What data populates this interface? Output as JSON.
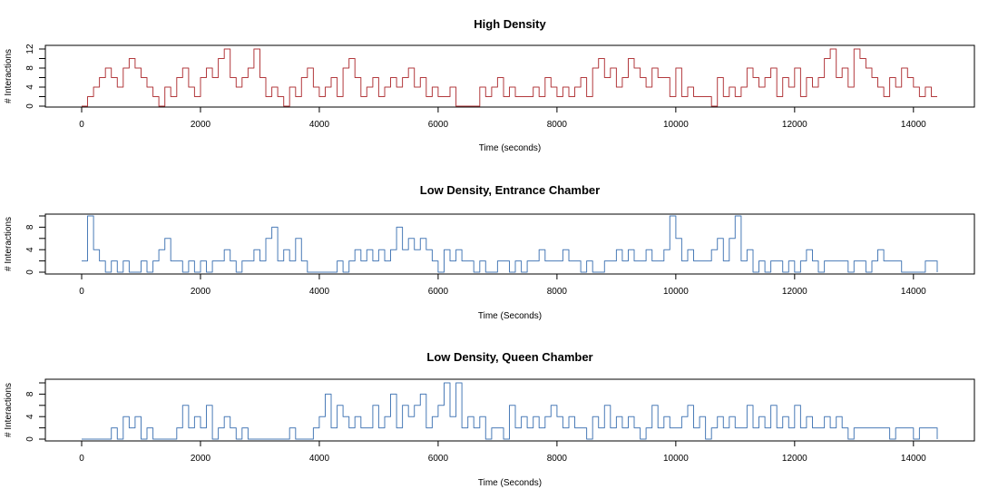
{
  "chart_data": [
    {
      "type": "line",
      "title": "High Density",
      "xlabel": "Time (seconds)",
      "ylabel": "# Interactions",
      "xlim": [
        0,
        14400
      ],
      "ylim": [
        0,
        12
      ],
      "x_ticks": [
        0,
        2000,
        4000,
        6000,
        8000,
        10000,
        12000,
        14000
      ],
      "y_ticks": [
        0,
        4,
        8,
        12
      ],
      "y_tick_labels": [
        "0",
        "4",
        "8",
        "12"
      ],
      "y_minor_ticks": [
        2,
        6,
        10
      ],
      "color": "#b2393d",
      "series": [
        {
          "x": [
            0,
            100,
            200,
            300,
            400,
            500,
            600,
            700,
            800,
            900,
            1000,
            1100,
            1200,
            1300,
            1400,
            1500,
            1600,
            1700,
            1800,
            1900,
            2000,
            2100,
            2200,
            2300,
            2400,
            2500,
            2600,
            2700,
            2800,
            2900,
            3000,
            3100,
            3200,
            3300,
            3400,
            3500,
            3600,
            3700,
            3800,
            3900,
            4000,
            4100,
            4200,
            4300,
            4400,
            4500,
            4600,
            4700,
            4800,
            4900,
            5000,
            5100,
            5200,
            5300,
            5400,
            5500,
            5600,
            5700,
            5800,
            5900,
            6000,
            6100,
            6200,
            6300,
            6400,
            6500,
            6600,
            6700,
            6800,
            6900,
            7000,
            7100,
            7200,
            7300,
            7400,
            7500,
            7600,
            7700,
            7800,
            7900,
            8000,
            8100,
            8200,
            8300,
            8400,
            8500,
            8600,
            8700,
            8800,
            8900,
            9000,
            9100,
            9200,
            9300,
            9400,
            9500,
            9600,
            9700,
            9800,
            9900,
            10000,
            10100,
            10200,
            10300,
            10400,
            10500,
            10600,
            10700,
            10800,
            10900,
            11000,
            11100,
            11200,
            11300,
            11400,
            11500,
            11600,
            11700,
            11800,
            11900,
            12000,
            12100,
            12200,
            12300,
            12400,
            12500,
            12600,
            12700,
            12800,
            12900,
            13000,
            13100,
            13200,
            13300,
            13400,
            13500,
            13600,
            13700,
            13800,
            13900,
            14000,
            14100,
            14200,
            14300,
            14400
          ],
          "values": [
            0,
            2,
            4,
            6,
            8,
            6,
            4,
            8,
            10,
            8,
            6,
            4,
            2,
            0,
            4,
            2,
            6,
            8,
            4,
            2,
            6,
            8,
            6,
            10,
            12,
            6,
            4,
            6,
            8,
            12,
            6,
            2,
            4,
            2,
            0,
            4,
            2,
            6,
            8,
            4,
            2,
            4,
            6,
            2,
            8,
            10,
            6,
            2,
            4,
            6,
            2,
            4,
            6,
            4,
            6,
            8,
            4,
            6,
            2,
            4,
            2,
            2,
            4,
            0,
            0,
            0,
            0,
            4,
            2,
            4,
            6,
            2,
            4,
            2,
            2,
            2,
            4,
            2,
            6,
            4,
            2,
            4,
            2,
            4,
            6,
            2,
            8,
            10,
            6,
            8,
            4,
            6,
            10,
            8,
            6,
            4,
            8,
            6,
            6,
            2,
            8,
            2,
            4,
            2,
            2,
            2,
            0,
            6,
            2,
            4,
            2,
            4,
            8,
            6,
            4,
            6,
            8,
            2,
            6,
            4,
            8,
            2,
            6,
            4,
            6,
            10,
            12,
            6,
            8,
            4,
            12,
            10,
            8,
            6,
            4,
            2,
            6,
            4,
            8,
            6,
            4,
            2,
            4,
            2,
            2
          ]
        }
      ]
    },
    {
      "type": "line",
      "title": "Low Density, Entrance Chamber",
      "xlabel": "Time (Seconds)",
      "ylabel": "# Interactions",
      "xlim": [
        0,
        14400
      ],
      "ylim": [
        0,
        10
      ],
      "x_ticks": [
        0,
        2000,
        4000,
        6000,
        8000,
        10000,
        12000,
        14000
      ],
      "y_ticks": [
        0,
        4,
        8
      ],
      "y_tick_labels": [
        "0",
        "4",
        "8"
      ],
      "y_minor_ticks": [
        2,
        6,
        10
      ],
      "color": "#4a7bb7",
      "series": [
        {
          "x": [
            0,
            100,
            200,
            300,
            400,
            500,
            600,
            700,
            800,
            900,
            1000,
            1100,
            1200,
            1300,
            1400,
            1500,
            1600,
            1700,
            1800,
            1900,
            2000,
            2100,
            2200,
            2300,
            2400,
            2500,
            2600,
            2700,
            2800,
            2900,
            3000,
            3100,
            3200,
            3300,
            3400,
            3500,
            3600,
            3700,
            3800,
            3900,
            4000,
            4100,
            4200,
            4300,
            4400,
            4500,
            4600,
            4700,
            4800,
            4900,
            5000,
            5100,
            5200,
            5300,
            5400,
            5500,
            5600,
            5700,
            5800,
            5900,
            6000,
            6100,
            6200,
            6300,
            6400,
            6500,
            6600,
            6700,
            6800,
            6900,
            7000,
            7100,
            7200,
            7300,
            7400,
            7500,
            7600,
            7700,
            7800,
            7900,
            8000,
            8100,
            8200,
            8300,
            8400,
            8500,
            8600,
            8700,
            8800,
            8900,
            9000,
            9100,
            9200,
            9300,
            9400,
            9500,
            9600,
            9700,
            9800,
            9900,
            10000,
            10100,
            10200,
            10300,
            10400,
            10500,
            10600,
            10700,
            10800,
            10900,
            11000,
            11100,
            11200,
            11300,
            11400,
            11500,
            11600,
            11700,
            11800,
            11900,
            12000,
            12100,
            12200,
            12300,
            12400,
            12500,
            12600,
            12700,
            12800,
            12900,
            13000,
            13100,
            13200,
            13300,
            13400,
            13500,
            13600,
            13700,
            13800,
            13900,
            14000,
            14100,
            14200,
            14300,
            14400
          ],
          "values": [
            2,
            10,
            4,
            2,
            0,
            2,
            0,
            2,
            0,
            0,
            2,
            0,
            2,
            4,
            6,
            2,
            2,
            0,
            2,
            0,
            2,
            0,
            2,
            2,
            4,
            2,
            0,
            2,
            2,
            4,
            2,
            6,
            8,
            2,
            4,
            2,
            6,
            2,
            0,
            0,
            0,
            0,
            0,
            2,
            0,
            2,
            4,
            2,
            4,
            2,
            4,
            2,
            4,
            8,
            4,
            6,
            4,
            6,
            4,
            2,
            0,
            4,
            2,
            4,
            2,
            2,
            0,
            2,
            0,
            0,
            2,
            2,
            0,
            2,
            0,
            2,
            2,
            4,
            2,
            2,
            2,
            4,
            2,
            2,
            0,
            2,
            0,
            0,
            2,
            2,
            4,
            2,
            4,
            2,
            2,
            4,
            2,
            2,
            4,
            10,
            6,
            2,
            4,
            2,
            2,
            2,
            4,
            6,
            2,
            6,
            10,
            2,
            4,
            0,
            2,
            0,
            2,
            2,
            0,
            2,
            0,
            2,
            4,
            2,
            0,
            2,
            2,
            2,
            2,
            0,
            2,
            2,
            0,
            2,
            4,
            2,
            2,
            2,
            0,
            0,
            0,
            0,
            2,
            2,
            0
          ]
        }
      ]
    },
    {
      "type": "line",
      "title": "Low Density, Queen Chamber",
      "xlabel": "Time (Seconds)",
      "ylabel": "# Interactions",
      "xlim": [
        0,
        14400
      ],
      "ylim": [
        0,
        10
      ],
      "x_ticks": [
        0,
        2000,
        4000,
        6000,
        8000,
        10000,
        12000,
        14000
      ],
      "y_ticks": [
        0,
        4,
        8
      ],
      "y_tick_labels": [
        "0",
        "4",
        "8"
      ],
      "y_minor_ticks": [
        2,
        6,
        10
      ],
      "color": "#4a7bb7",
      "series": [
        {
          "x": [
            0,
            100,
            200,
            300,
            400,
            500,
            600,
            700,
            800,
            900,
            1000,
            1100,
            1200,
            1300,
            1400,
            1500,
            1600,
            1700,
            1800,
            1900,
            2000,
            2100,
            2200,
            2300,
            2400,
            2500,
            2600,
            2700,
            2800,
            2900,
            3000,
            3100,
            3200,
            3300,
            3400,
            3500,
            3600,
            3700,
            3800,
            3900,
            4000,
            4100,
            4200,
            4300,
            4400,
            4500,
            4600,
            4700,
            4800,
            4900,
            5000,
            5100,
            5200,
            5300,
            5400,
            5500,
            5600,
            5700,
            5800,
            5900,
            6000,
            6100,
            6200,
            6300,
            6400,
            6500,
            6600,
            6700,
            6800,
            6900,
            7000,
            7100,
            7200,
            7300,
            7400,
            7500,
            7600,
            7700,
            7800,
            7900,
            8000,
            8100,
            8200,
            8300,
            8400,
            8500,
            8600,
            8700,
            8800,
            8900,
            9000,
            9100,
            9200,
            9300,
            9400,
            9500,
            9600,
            9700,
            9800,
            9900,
            10000,
            10100,
            10200,
            10300,
            10400,
            10500,
            10600,
            10700,
            10800,
            10900,
            11000,
            11100,
            11200,
            11300,
            11400,
            11500,
            11600,
            11700,
            11800,
            11900,
            12000,
            12100,
            12200,
            12300,
            12400,
            12500,
            12600,
            12700,
            12800,
            12900,
            13000,
            13100,
            13200,
            13300,
            13400,
            13500,
            13600,
            13700,
            13800,
            13900,
            14000,
            14100,
            14200,
            14300,
            14400
          ],
          "values": [
            0,
            0,
            0,
            0,
            0,
            2,
            0,
            4,
            2,
            4,
            0,
            2,
            0,
            0,
            0,
            0,
            2,
            6,
            2,
            4,
            2,
            6,
            0,
            2,
            4,
            2,
            0,
            2,
            0,
            0,
            0,
            0,
            0,
            0,
            0,
            2,
            0,
            0,
            0,
            2,
            4,
            8,
            2,
            6,
            4,
            2,
            4,
            2,
            2,
            6,
            2,
            4,
            8,
            2,
            6,
            4,
            6,
            8,
            2,
            4,
            6,
            10,
            4,
            10,
            2,
            4,
            2,
            4,
            0,
            2,
            2,
            0,
            6,
            2,
            4,
            2,
            4,
            2,
            4,
            6,
            4,
            2,
            4,
            2,
            2,
            0,
            4,
            2,
            6,
            2,
            4,
            2,
            4,
            2,
            0,
            2,
            6,
            2,
            4,
            2,
            2,
            4,
            6,
            2,
            4,
            0,
            2,
            4,
            2,
            4,
            2,
            2,
            6,
            2,
            4,
            2,
            6,
            2,
            4,
            2,
            6,
            2,
            4,
            2,
            2,
            4,
            2,
            4,
            2,
            0,
            2,
            2,
            2,
            2,
            2,
            2,
            0,
            2,
            2,
            2,
            0,
            2,
            2,
            2,
            0
          ]
        }
      ]
    }
  ]
}
